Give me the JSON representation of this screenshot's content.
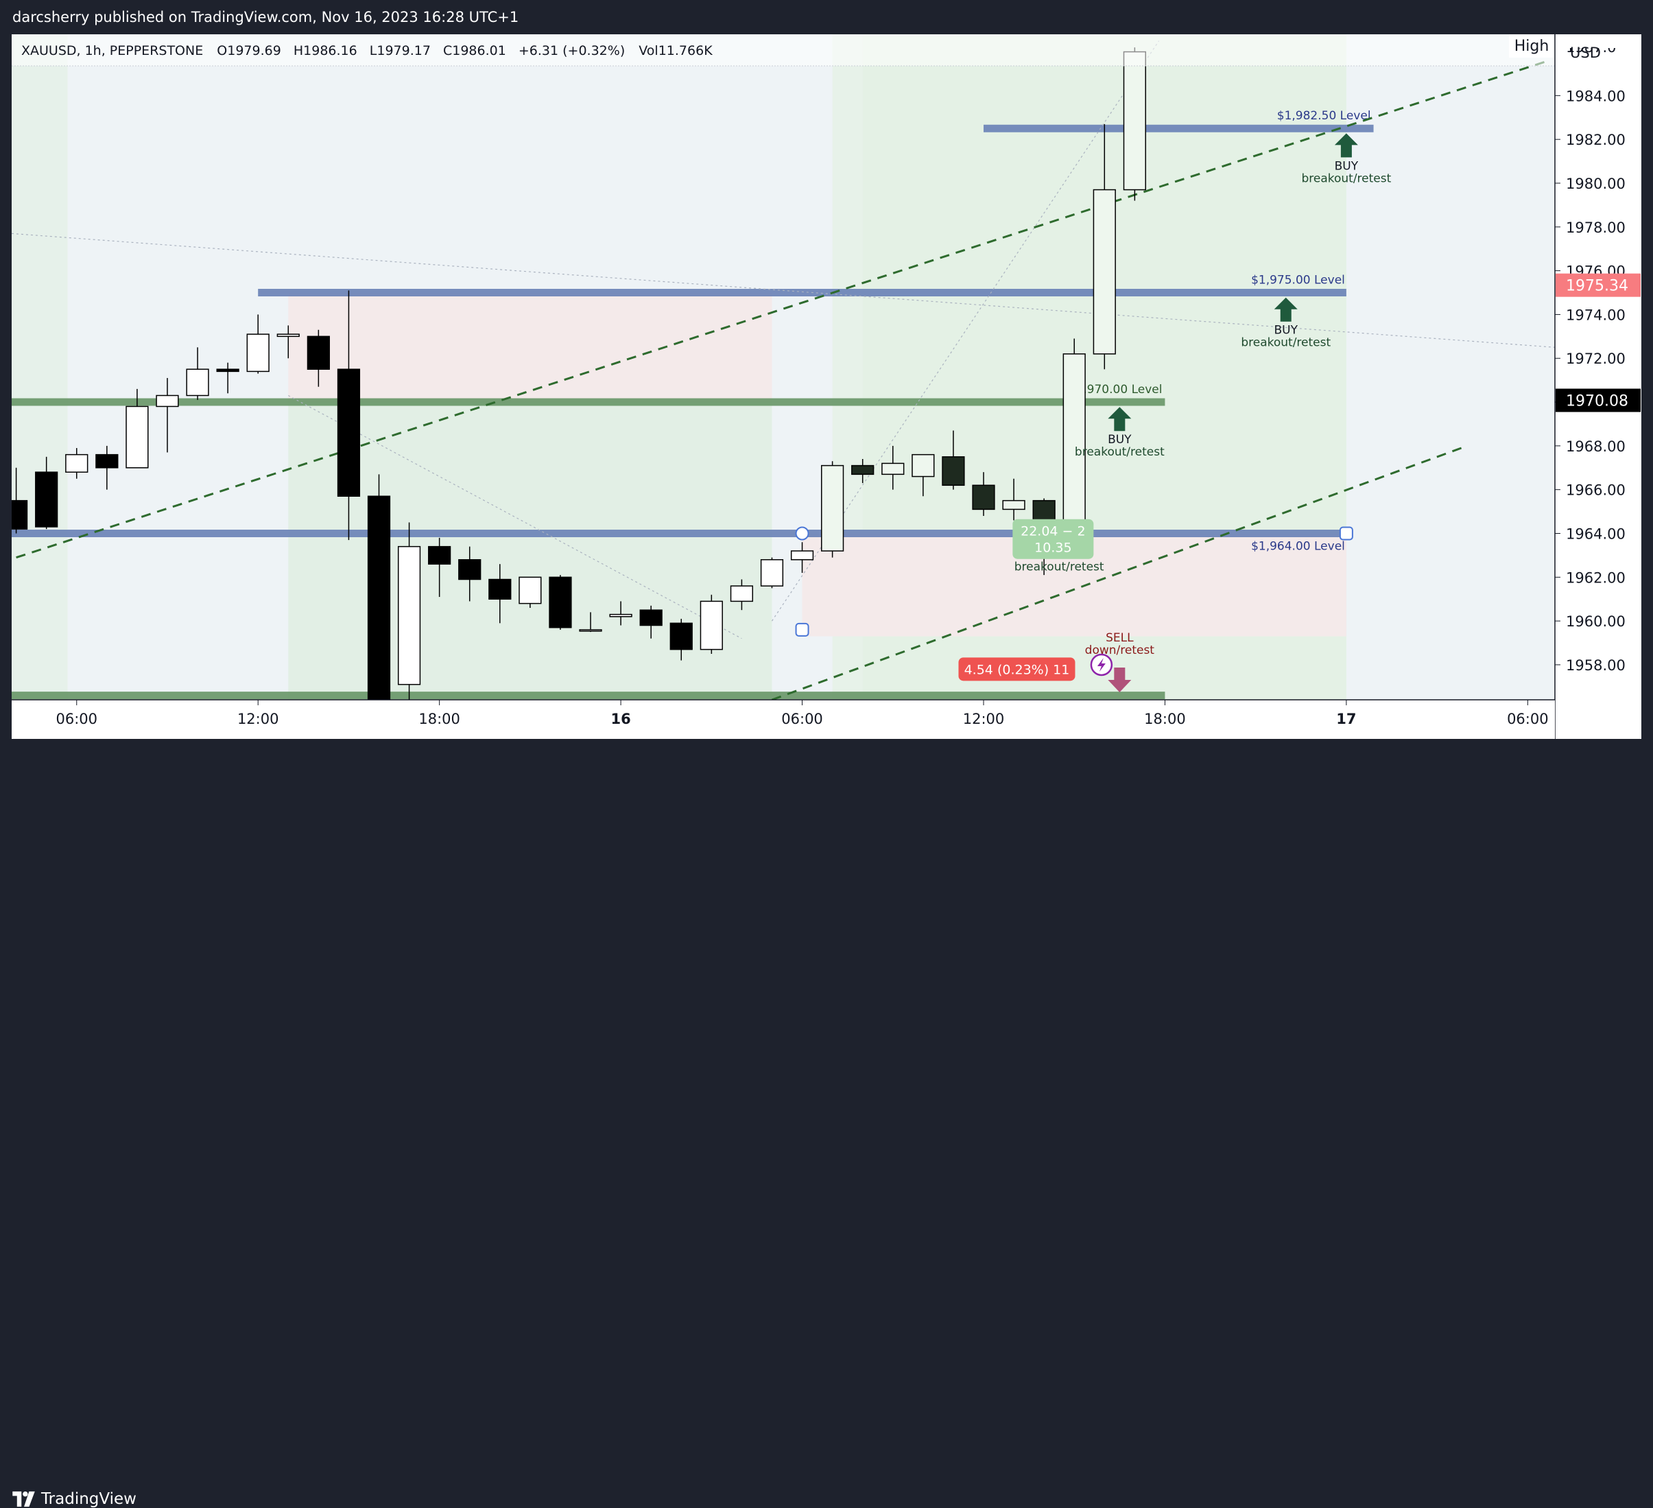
{
  "header": {
    "published_line": "darcsherry published on TradingView.com, Nov 16, 2023 16:28 UTC+1"
  },
  "footer": {
    "brand": "TradingView",
    "logo_icon": "tradingview-logo-icon"
  },
  "legend": {
    "symbol": "XAUUSD, 1h, PEPPERSTONE",
    "open": "O1979.69",
    "high": "H1986.16",
    "low": "L1979.17",
    "close": "C1986.01",
    "change": "+6.31 (+0.32%)",
    "volume": "Vol11.766K"
  },
  "chart_data": {
    "type": "candlestick",
    "symbol": "XAUUSD",
    "interval": "1h",
    "currency": "USD",
    "price_scale_button": "High",
    "grid": false,
    "ylim": [
      1956.4,
      1986.8
    ],
    "y_ticks": [
      "1958.00",
      "1960.00",
      "1962.00",
      "1964.00",
      "1966.00",
      "1968.00",
      "1970.00",
      "1972.00",
      "1974.00",
      "1976.00",
      "1978.00",
      "1980.00",
      "1982.00",
      "1984.00"
    ],
    "x_tick_labels": [
      {
        "label": "06:00",
        "t": 0
      },
      {
        "label": "12:00",
        "t": 6
      },
      {
        "label": "18:00",
        "t": 12
      },
      {
        "label": "16",
        "t": 18,
        "bold": true
      },
      {
        "label": "06:00",
        "t": 24
      },
      {
        "label": "12:00",
        "t": 30
      },
      {
        "label": "18:00",
        "t": 36
      },
      {
        "label": "17",
        "t": 42,
        "bold": true
      },
      {
        "label": "06:00",
        "t": 48
      }
    ],
    "x_range_hours": [
      -2.15,
      48.9
    ],
    "candles": [
      {
        "t": -2,
        "o": 1965.5,
        "h": 1967.0,
        "l": 1964.0,
        "c": 1964.2
      },
      {
        "t": -1,
        "o": 1966.8,
        "h": 1967.5,
        "l": 1964.2,
        "c": 1964.3
      },
      {
        "t": 0,
        "o": 1966.8,
        "h": 1967.9,
        "l": 1966.5,
        "c": 1967.6
      },
      {
        "t": 1,
        "o": 1967.6,
        "h": 1968.0,
        "l": 1966.0,
        "c": 1967.0
      },
      {
        "t": 2,
        "o": 1967.0,
        "h": 1970.6,
        "l": 1967.0,
        "c": 1969.8
      },
      {
        "t": 3,
        "o": 1969.8,
        "h": 1971.1,
        "l": 1967.7,
        "c": 1970.3
      },
      {
        "t": 4,
        "o": 1970.3,
        "h": 1972.5,
        "l": 1970.1,
        "c": 1971.5
      },
      {
        "t": 5,
        "o": 1971.5,
        "h": 1971.8,
        "l": 1970.4,
        "c": 1971.4
      },
      {
        "t": 6,
        "o": 1971.4,
        "h": 1974.0,
        "l": 1971.3,
        "c": 1973.1
      },
      {
        "t": 7,
        "o": 1973.0,
        "h": 1973.5,
        "l": 1972.0,
        "c": 1973.1
      },
      {
        "t": 8,
        "o": 1973.0,
        "h": 1973.3,
        "l": 1970.7,
        "c": 1971.5
      },
      {
        "t": 9,
        "o": 1971.5,
        "h": 1975.1,
        "l": 1963.7,
        "c": 1965.7
      },
      {
        "t": 10,
        "o": 1965.7,
        "h": 1966.7,
        "l": 1956.4,
        "c": 1956.4
      },
      {
        "t": 11,
        "o": 1957.1,
        "h": 1964.5,
        "l": 1956.4,
        "c": 1963.4
      },
      {
        "t": 12,
        "o": 1963.4,
        "h": 1963.8,
        "l": 1961.1,
        "c": 1962.6
      },
      {
        "t": 13,
        "o": 1962.8,
        "h": 1963.4,
        "l": 1960.9,
        "c": 1961.9
      },
      {
        "t": 14,
        "o": 1961.9,
        "h": 1962.6,
        "l": 1959.9,
        "c": 1961.0
      },
      {
        "t": 15,
        "o": 1960.8,
        "h": 1962.0,
        "l": 1960.6,
        "c": 1962.0
      },
      {
        "t": 16,
        "o": 1962.0,
        "h": 1962.1,
        "l": 1959.6,
        "c": 1959.7
      },
      {
        "t": 17,
        "o": 1959.6,
        "h": 1960.4,
        "l": 1959.5,
        "c": 1959.6
      },
      {
        "t": 18,
        "o": 1960.2,
        "h": 1960.9,
        "l": 1959.8,
        "c": 1960.3
      },
      {
        "t": 19,
        "o": 1960.5,
        "h": 1960.7,
        "l": 1959.2,
        "c": 1959.8
      },
      {
        "t": 20,
        "o": 1959.9,
        "h": 1960.1,
        "l": 1958.2,
        "c": 1958.7
      },
      {
        "t": 21,
        "o": 1958.7,
        "h": 1961.2,
        "l": 1958.5,
        "c": 1960.9
      },
      {
        "t": 22,
        "o": 1960.9,
        "h": 1961.9,
        "l": 1960.5,
        "c": 1961.6
      },
      {
        "t": 23,
        "o": 1961.6,
        "h": 1962.9,
        "l": 1961.5,
        "c": 1962.8
      },
      {
        "t": 24,
        "o": 1962.8,
        "h": 1963.6,
        "l": 1962.2,
        "c": 1963.2
      },
      {
        "t": 25,
        "o": 1963.2,
        "h": 1967.3,
        "l": 1962.9,
        "c": 1967.1
      },
      {
        "t": 26,
        "o": 1967.1,
        "h": 1967.4,
        "l": 1966.3,
        "c": 1966.7
      },
      {
        "t": 27,
        "o": 1966.7,
        "h": 1968.0,
        "l": 1966.0,
        "c": 1967.2
      },
      {
        "t": 28,
        "o": 1966.6,
        "h": 1967.6,
        "l": 1965.7,
        "c": 1967.6
      },
      {
        "t": 29,
        "o": 1967.5,
        "h": 1968.7,
        "l": 1966.0,
        "c": 1966.2
      },
      {
        "t": 30,
        "o": 1966.2,
        "h": 1966.8,
        "l": 1964.8,
        "c": 1965.1
      },
      {
        "t": 31,
        "o": 1965.1,
        "h": 1966.5,
        "l": 1964.6,
        "c": 1965.5
      },
      {
        "t": 32,
        "o": 1965.5,
        "h": 1965.6,
        "l": 1962.1,
        "c": 1964.2
      },
      {
        "t": 33,
        "o": 1964.2,
        "h": 1972.9,
        "l": 1964.0,
        "c": 1972.2
      },
      {
        "t": 34,
        "o": 1972.2,
        "h": 1982.7,
        "l": 1971.5,
        "c": 1979.7
      },
      {
        "t": 35,
        "o": 1979.7,
        "h": 1986.2,
        "l": 1979.2,
        "c": 1986.0
      }
    ],
    "horizontal_levels": [
      {
        "label": "$1,982.50 Level",
        "y": 1982.5,
        "t_start": 30.0,
        "t_end": 42.9,
        "color": "#6f86b8"
      },
      {
        "label": "$1,975.00 Level",
        "y": 1975.0,
        "t_start": 6.0,
        "t_end": 42.0,
        "color": "#6f86b8"
      },
      {
        "label": "$1,970.00 Level",
        "y": 1970.0,
        "t_start": -2.15,
        "t_end": 36.0,
        "color": "#6e9a6e"
      },
      {
        "label": "$1,964.00 Level",
        "y": 1964.0,
        "t_start": -2.15,
        "t_end": 42.0,
        "color": "#6f86b8"
      },
      {
        "label": "",
        "y": 1956.6,
        "t_start": -2.15,
        "t_end": 36.0,
        "color": "#6e9a6e"
      }
    ],
    "trend_lines": [
      {
        "style": "dashed",
        "color": "#2e6b2e",
        "x1": -2.0,
        "y1": 1962.9,
        "x2": 48.7,
        "y2": 1985.6
      },
      {
        "style": "dashed",
        "color": "#2e6b2e",
        "x1": 23.0,
        "y1": 1956.4,
        "x2": 46.0,
        "y2": 1968.0
      }
    ],
    "annotations": [
      {
        "type": "buy",
        "line1": "BUY",
        "line2": "breakout/retest",
        "t": 42.0,
        "y": 1982.4
      },
      {
        "type": "buy",
        "line1": "BUY",
        "line2": "breakout/retest",
        "t": 40.0,
        "y": 1974.9
      },
      {
        "type": "buy",
        "line1": "BUY",
        "line2": "breakout/retest",
        "t": 34.5,
        "y": 1969.9
      },
      {
        "type": "buy-text",
        "line1": "BUY",
        "line2": "breakout/retest",
        "t": 32.5,
        "y": 1963.0
      },
      {
        "type": "sell",
        "line1": "SELL",
        "line2": "down/retest",
        "t": 34.5,
        "y": 1958.0
      }
    ],
    "measure_labels": [
      {
        "text_line1": "22.04 − 2",
        "text_line2": "10.35",
        "color": "#a5d6a7",
        "t": 32.3,
        "y": 1963.9
      },
      {
        "text_line1": "4.54 (0.23%) 11",
        "text_line2": "",
        "color": "#ef5350",
        "t": 31.1,
        "y": 1957.8
      }
    ],
    "price_labels": [
      {
        "text": "1975.34",
        "y": 1975.34,
        "bg": "#f77c80",
        "fg": "#ffffff"
      },
      {
        "text": "1970.08",
        "y": 1970.08,
        "bg": "#000000",
        "fg": "#ffffff"
      }
    ],
    "top_axis_partial_label": "1987.0"
  }
}
